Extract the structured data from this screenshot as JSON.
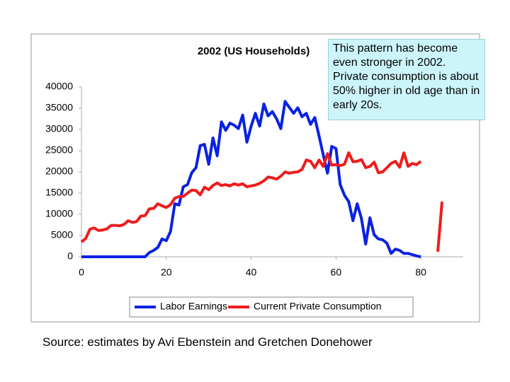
{
  "chart_data": {
    "type": "line",
    "title": "2002 (US Households)",
    "annotation": "This pattern has become even stronger in 2002. Private consumption is about 50% higher in old age than in early 20s.",
    "source": "Source: estimates by Avi Ebenstein and Gretchen Donehower",
    "x": [
      0,
      1,
      2,
      3,
      4,
      5,
      6,
      7,
      8,
      9,
      10,
      11,
      12,
      13,
      14,
      15,
      16,
      17,
      18,
      19,
      20,
      21,
      22,
      23,
      24,
      25,
      26,
      27,
      28,
      29,
      30,
      31,
      32,
      33,
      34,
      35,
      36,
      37,
      38,
      39,
      40,
      41,
      42,
      43,
      44,
      45,
      46,
      47,
      48,
      49,
      50,
      51,
      52,
      53,
      54,
      55,
      56,
      57,
      58,
      59,
      60,
      61,
      62,
      63,
      64,
      65,
      66,
      67,
      68,
      69,
      70,
      71,
      72,
      73,
      74,
      75,
      76,
      77,
      78,
      79,
      80,
      81,
      82,
      83,
      84,
      85
    ],
    "series": [
      {
        "name": "Labor Earnings",
        "color": "#0a22e0",
        "values": [
          0,
          0,
          0,
          0,
          0,
          0,
          0,
          0,
          0,
          0,
          0,
          0,
          0,
          0,
          0,
          0,
          1000,
          1500,
          2200,
          4200,
          3800,
          6000,
          12500,
          12200,
          16500,
          17000,
          19800,
          21000,
          26200,
          26500,
          21800,
          28000,
          23800,
          31800,
          29800,
          31500,
          31000,
          30200,
          33400,
          27000,
          30800,
          33800,
          30800,
          36000,
          33200,
          34200,
          32500,
          30200,
          36600,
          35200,
          33800,
          35100,
          33000,
          33800,
          31200,
          32800,
          28500,
          24000,
          19700,
          26000,
          25500,
          17000,
          14500,
          13000,
          8500,
          12500,
          9000,
          3000,
          9200,
          5200,
          4200,
          4000,
          3200,
          800,
          1800,
          1500,
          800,
          800,
          500,
          200,
          0,
          null,
          null,
          null,
          null,
          null
        ]
      },
      {
        "name": "Current Private Consumption",
        "color": "#ee1c1c",
        "values": [
          3500,
          4300,
          6500,
          6800,
          6200,
          6300,
          6600,
          7400,
          7400,
          7300,
          7600,
          8500,
          8100,
          8300,
          9600,
          9700,
          11300,
          11400,
          12500,
          12000,
          11600,
          12300,
          13800,
          14200,
          14200,
          15000,
          15700,
          15600,
          14600,
          16400,
          15800,
          16800,
          17400,
          16800,
          17000,
          16700,
          17200,
          16900,
          17200,
          16500,
          16700,
          16900,
          17300,
          17900,
          18800,
          18600,
          18300,
          19000,
          20000,
          19700,
          19900,
          20000,
          20600,
          22800,
          22500,
          21000,
          22800,
          21300,
          24300,
          21600,
          21700,
          21500,
          21800,
          24500,
          22400,
          22500,
          22900,
          21000,
          21300,
          22300,
          19800,
          20000,
          21000,
          22000,
          22500,
          21100,
          24500,
          21300,
          22000,
          21700,
          22500,
          null,
          null,
          null,
          1200,
          13000
        ]
      }
    ],
    "xlim": [
      0,
      90
    ],
    "ylim": [
      0,
      40000
    ],
    "xticks": [
      0,
      20,
      40,
      60,
      80
    ],
    "yticks": [
      0,
      5000,
      10000,
      15000,
      20000,
      25000,
      30000,
      35000,
      40000
    ],
    "grid": false
  }
}
